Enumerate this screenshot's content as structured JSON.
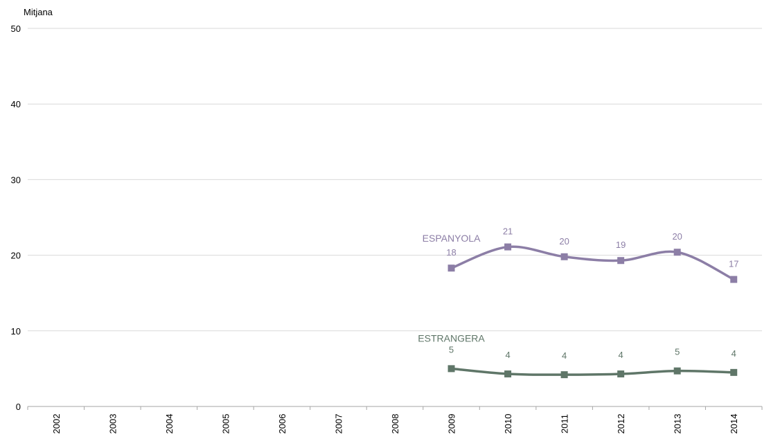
{
  "chart_data": {
    "type": "line",
    "title": "",
    "ylabel": "Mitjana",
    "xlabel": "",
    "ylim": [
      0,
      50
    ],
    "yticks": [
      0,
      10,
      20,
      30,
      40,
      50
    ],
    "grid": "horizontal",
    "categories": [
      "2002",
      "2003",
      "2004",
      "2005",
      "2006",
      "2007",
      "2008",
      "2009",
      "2010",
      "2011",
      "2012",
      "2013",
      "2014"
    ],
    "series": [
      {
        "name": "ESPANYOLA",
        "color": "#8c7ea6",
        "values": [
          null,
          null,
          null,
          null,
          null,
          null,
          null,
          18.3,
          21.1,
          19.8,
          19.3,
          20.4,
          16.8
        ],
        "labels": [
          "",
          "",
          "",
          "",
          "",
          "",
          "",
          "18",
          "21",
          "20",
          "19",
          "20",
          "17"
        ]
      },
      {
        "name": "ESTRANGERA",
        "color": "#5f7668",
        "values": [
          null,
          null,
          null,
          null,
          null,
          null,
          null,
          5.0,
          4.3,
          4.2,
          4.3,
          4.7,
          4.5
        ],
        "labels": [
          "",
          "",
          "",
          "",
          "",
          "",
          "",
          "5",
          "4",
          "4",
          "4",
          "5",
          "4"
        ]
      }
    ]
  }
}
